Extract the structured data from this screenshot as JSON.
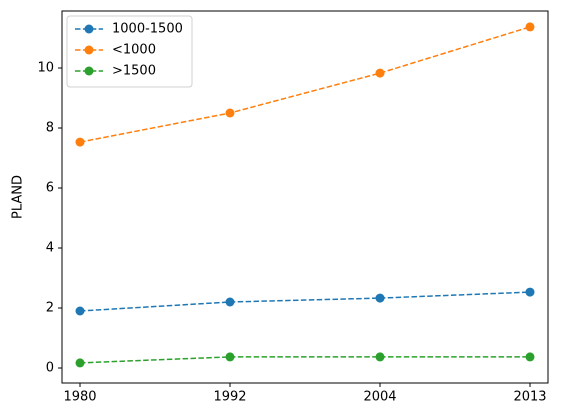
{
  "chart_data": {
    "type": "line",
    "y_label": "PLAND",
    "categories": [
      "1980",
      "1992",
      "2004",
      "2013"
    ],
    "series": [
      {
        "name": "1000-1500",
        "color": "#1f77b4",
        "values": [
          1.9,
          2.2,
          2.33,
          2.53
        ]
      },
      {
        "name": "<1000",
        "color": "#ff7f0e",
        "values": [
          7.53,
          8.5,
          9.83,
          11.37
        ]
      },
      {
        "name": ">1500",
        "color": "#2ca02c",
        "values": [
          0.17,
          0.37,
          0.37,
          0.37
        ]
      }
    ],
    "ylim": [
      -0.5,
      11.9
    ],
    "yticks": [
      0,
      2,
      4,
      6,
      8,
      10
    ],
    "legend": "upper left"
  }
}
